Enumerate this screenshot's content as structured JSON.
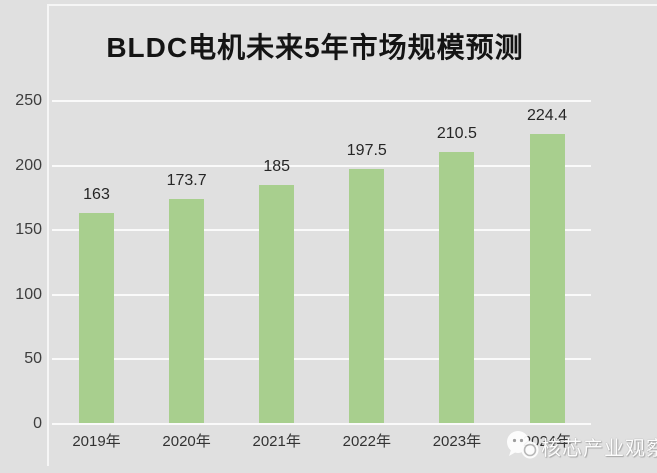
{
  "title": "BLDC电机未来5年市场规模预测",
  "watermark": {
    "text": "核芯产业观察",
    "logo": "speech-bubble-face-logo"
  },
  "chart_data": {
    "type": "bar",
    "title": "BLDC电机未来5年市场规模预测",
    "categories": [
      "2019年",
      "2020年",
      "2021年",
      "2022年",
      "2023年",
      "2024年"
    ],
    "values": [
      163,
      173.7,
      185,
      197.5,
      210.5,
      224.4
    ],
    "value_labels": [
      "163",
      "173.7",
      "185",
      "197.5",
      "210.5",
      "224.4"
    ],
    "xlabel": "",
    "ylabel": "",
    "ylim": [
      0,
      250
    ],
    "yticks": [
      0,
      50,
      100,
      150,
      200,
      250
    ],
    "grid": true,
    "legend": "none",
    "bar_color": "#a8cf8e",
    "background_color": "#e0e0e0",
    "gridline_color": "#fafafa",
    "label_color": "#262626",
    "axis_text_color": "#3d3d3d"
  }
}
